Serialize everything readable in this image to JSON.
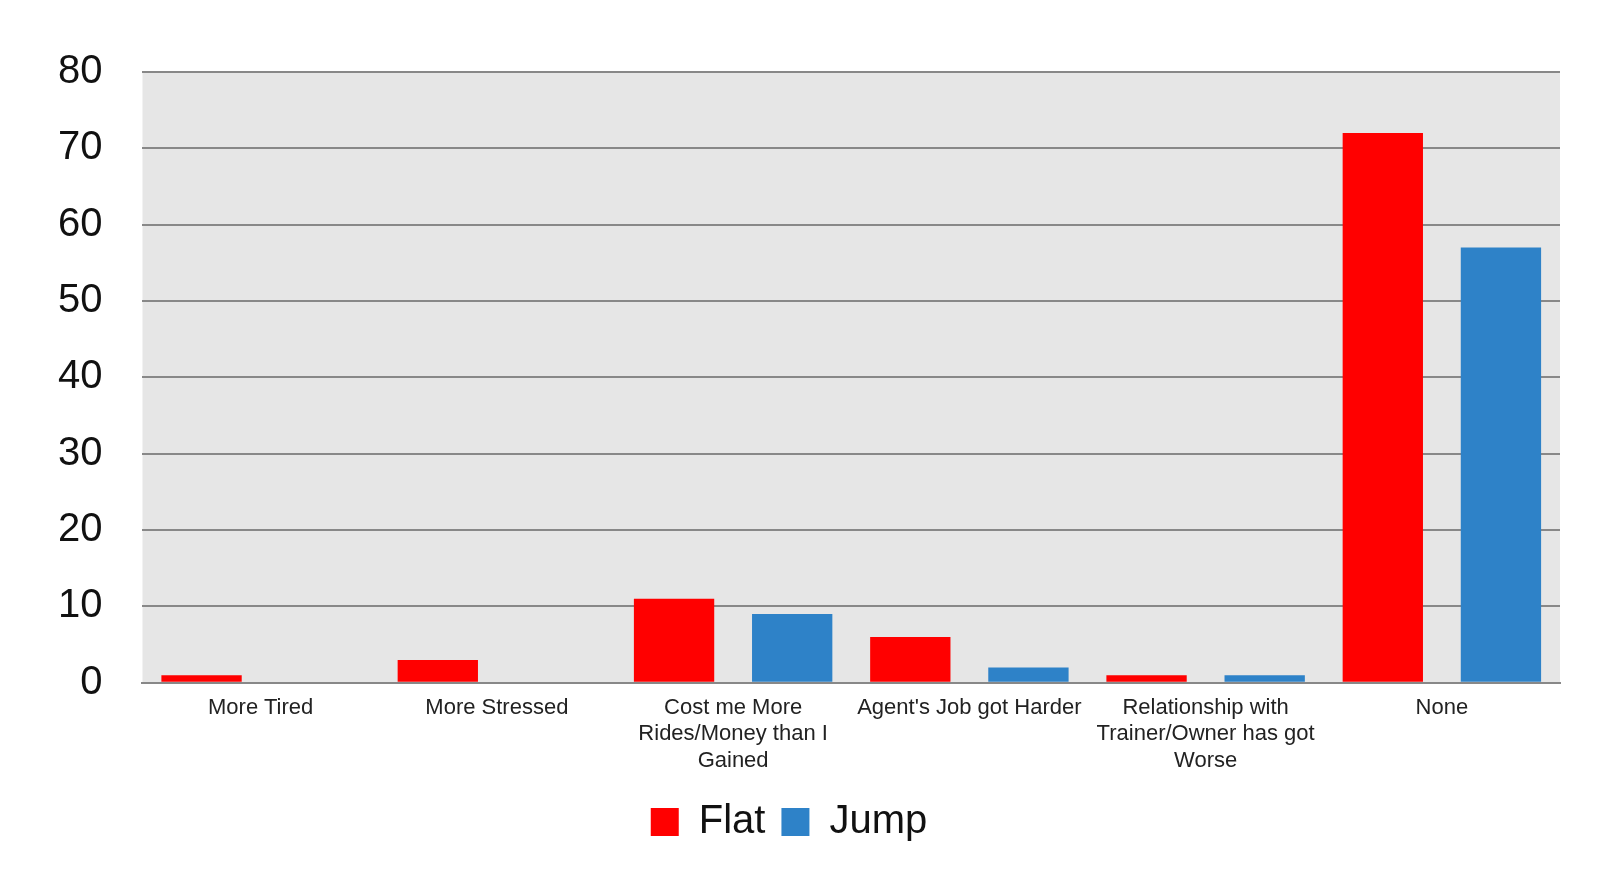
{
  "chart_data": {
    "type": "bar",
    "categories": [
      "More Tired",
      "More Stressed",
      "Cost me More Rides/Money than I Gained",
      "Agent's Job got Harder",
      "Relationship with Trainer/Owner has got Worse",
      "None"
    ],
    "series": [
      {
        "name": "Flat",
        "color": "#ff0000",
        "values": [
          1,
          3,
          11,
          6,
          1,
          72
        ]
      },
      {
        "name": "Jump",
        "color": "#2e82c8",
        "values": [
          0,
          0,
          9,
          2,
          1,
          57
        ]
      }
    ],
    "ylim": [
      0,
      80
    ],
    "yticks": [
      0,
      10,
      20,
      30,
      40,
      50,
      60,
      70,
      80
    ],
    "grid": "y",
    "legend": "bottom"
  }
}
